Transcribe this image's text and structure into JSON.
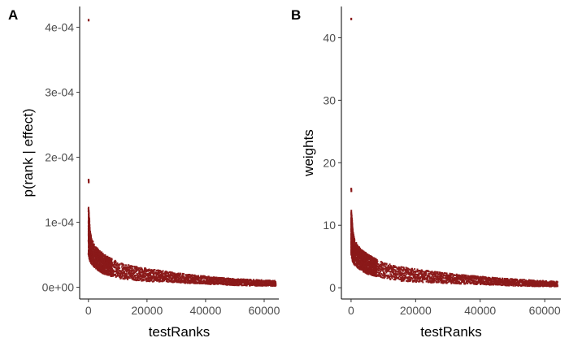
{
  "colors": {
    "point": "#8b1a1a",
    "axis": "#000000",
    "tick_text": "#4d4d4d",
    "background": "#ffffff"
  },
  "chart_data": [
    {
      "panel": "A",
      "type": "scatter",
      "xlabel": "testRanks",
      "ylabel": "p(rank | effect)",
      "xlim": [
        -3000,
        65000
      ],
      "ylim": [
        -1.8e-05,
        0.000432
      ],
      "xticks": [
        0,
        20000,
        40000,
        60000
      ],
      "xtick_labels": [
        "0",
        "20000",
        "40000",
        "60000"
      ],
      "yticks": [
        0,
        0.0001,
        0.0002,
        0.0003,
        0.0004
      ],
      "ytick_labels": [
        "0e+00",
        "1e-04",
        "2e-04",
        "3e-04",
        "4e-04"
      ],
      "grid": false,
      "legend": "none",
      "outliers": [
        [
          30,
          0.000411
        ],
        [
          30,
          0.000165
        ],
        [
          60,
          0.000162
        ]
      ],
      "band_x": [
        0,
        250,
        500,
        1000,
        2000,
        3000,
        5000,
        7000,
        10000,
        15000,
        20000,
        30000,
        40000,
        50000,
        60000,
        64000
      ],
      "band_y_upper": [
        0.000125,
        0.000109,
        8.8e-05,
        7.5e-05,
        6.6e-05,
        6e-05,
        5.2e-05,
        4.6e-05,
        3.9e-05,
        3.3e-05,
        2.9e-05,
        2.2e-05,
        1.7e-05,
        1.3e-05,
        1.1e-05,
        1e-05
      ],
      "band_y_lower": [
        5e-05,
        4.5e-05,
        4.1e-05,
        3.6e-05,
        3.1e-05,
        2.7e-05,
        2.1e-05,
        1.8e-05,
        1.4e-05,
        1.1e-05,
        9e-06,
        7e-06,
        5e-06,
        3e-06,
        2e-06,
        2e-06
      ]
    },
    {
      "panel": "B",
      "type": "scatter",
      "xlabel": "testRanks",
      "ylabel": "weights",
      "xlim": [
        -3000,
        65000
      ],
      "ylim": [
        -1.8,
        45
      ],
      "xticks": [
        0,
        20000,
        40000,
        60000
      ],
      "xtick_labels": [
        "0",
        "20000",
        "40000",
        "60000"
      ],
      "yticks": [
        0,
        10,
        20,
        30,
        40
      ],
      "ytick_labels": [
        "0",
        "10",
        "20",
        "30",
        "40"
      ],
      "grid": false,
      "legend": "none",
      "outliers": [
        [
          30,
          43.0
        ],
        [
          30,
          15.8
        ],
        [
          60,
          15.5
        ]
      ],
      "band_x": [
        0,
        250,
        500,
        1000,
        2000,
        3000,
        5000,
        7000,
        10000,
        15000,
        20000,
        30000,
        40000,
        50000,
        60000,
        64000
      ],
      "band_y_upper": [
        13.0,
        11.3,
        9.2,
        7.8,
        6.8,
        6.2,
        5.4,
        4.8,
        4.0,
        3.4,
        3.0,
        2.3,
        1.8,
        1.4,
        1.1,
        1.0
      ],
      "band_y_lower": [
        5.2,
        4.7,
        4.2,
        3.7,
        3.2,
        2.8,
        2.2,
        1.9,
        1.5,
        1.1,
        0.9,
        0.7,
        0.5,
        0.3,
        0.2,
        0.2
      ]
    }
  ]
}
